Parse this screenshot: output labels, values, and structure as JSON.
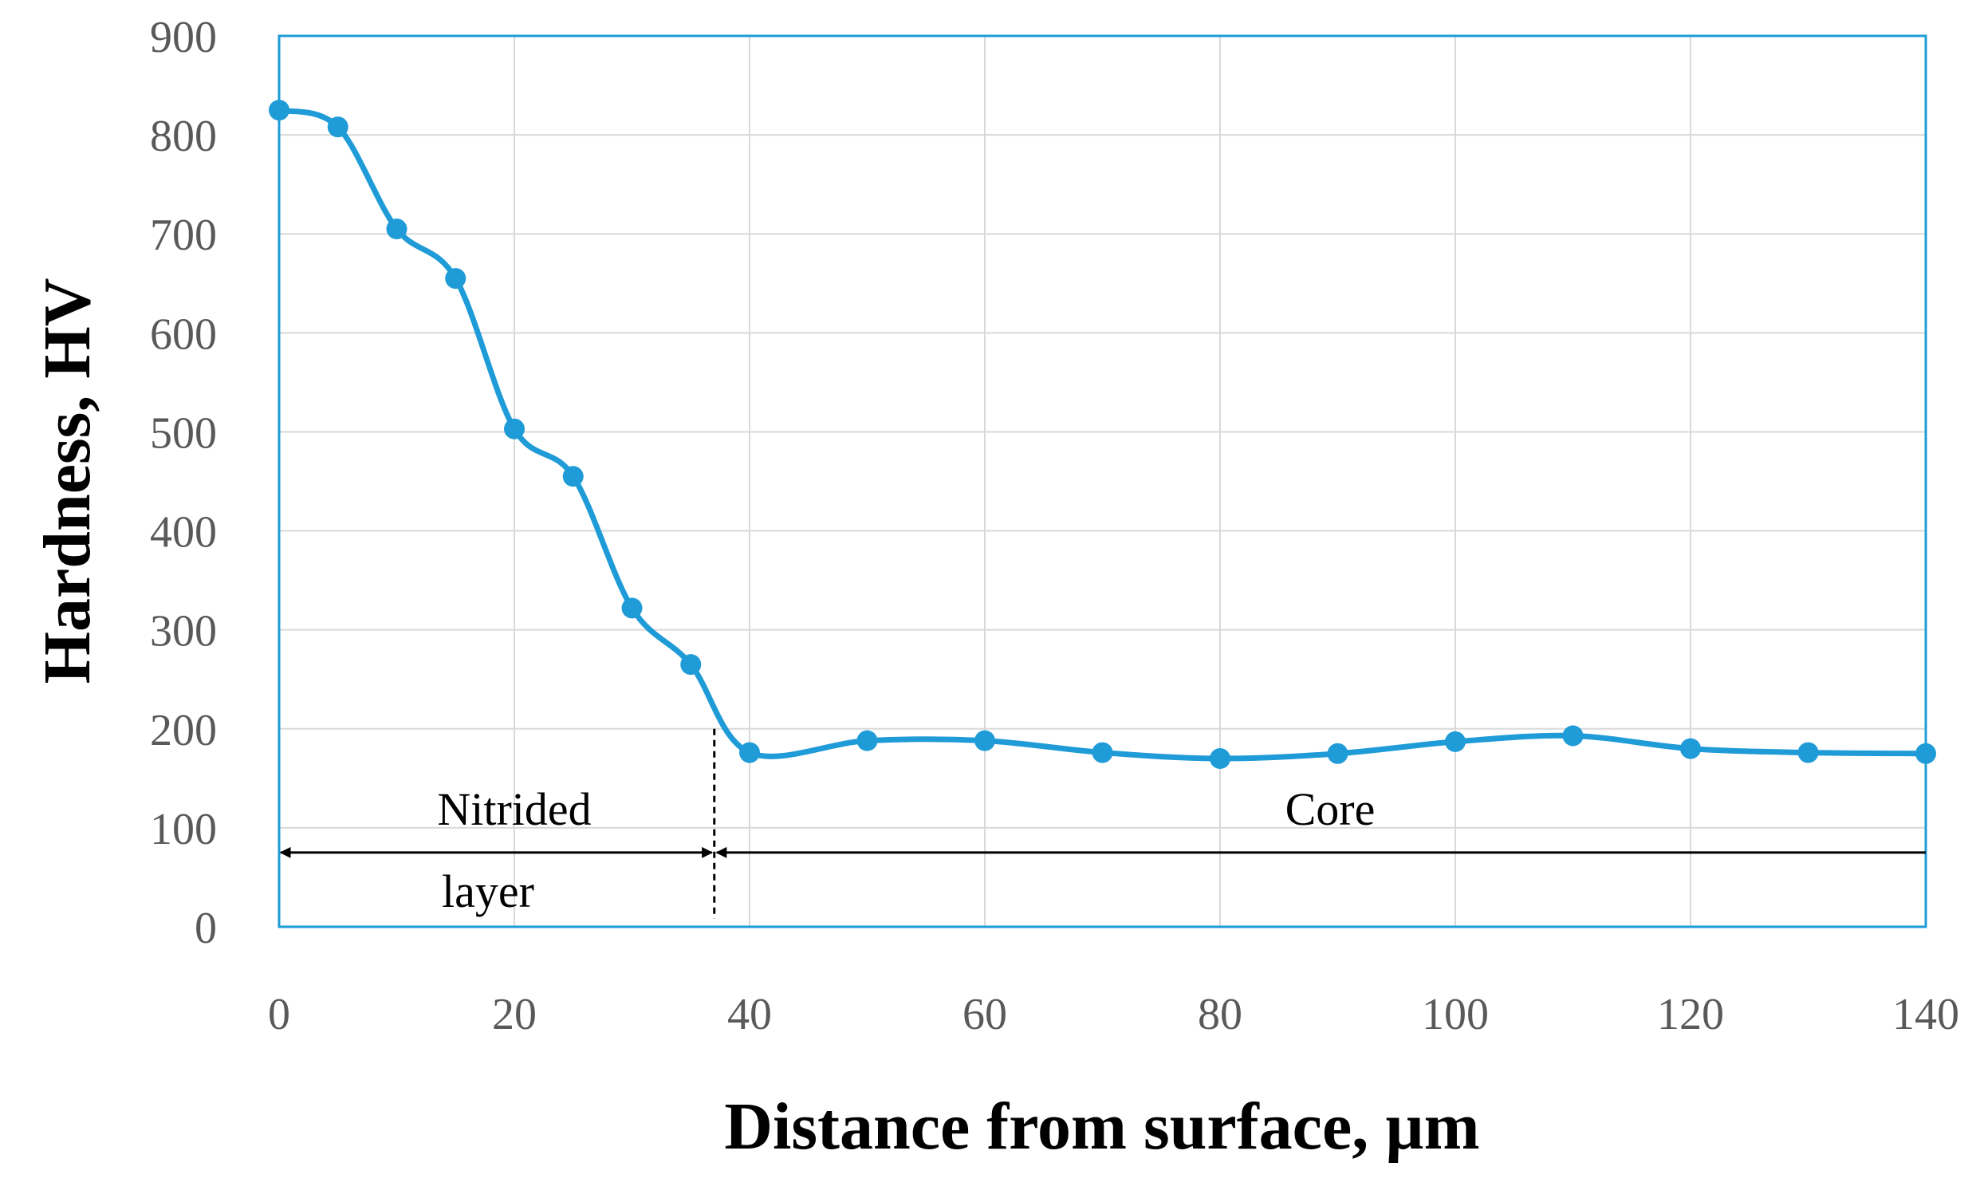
{
  "chart_data": {
    "type": "line",
    "title": "",
    "xlabel": "Distance from surface, µm",
    "ylabel": "Hardness, HV",
    "xlim": [
      0,
      140
    ],
    "ylim": [
      0,
      900
    ],
    "xticks": [
      0,
      20,
      40,
      60,
      80,
      100,
      120,
      140
    ],
    "yticks": [
      0,
      100,
      200,
      300,
      400,
      500,
      600,
      700,
      800,
      900
    ],
    "grid": true,
    "series": [
      {
        "name": "Hardness",
        "color": "#1f9bd7",
        "x": [
          0,
          5,
          10,
          15,
          20,
          25,
          30,
          35,
          40,
          50,
          60,
          70,
          80,
          90,
          100,
          110,
          120,
          130,
          140
        ],
        "y": [
          825,
          808,
          705,
          655,
          503,
          455,
          322,
          265,
          176,
          188,
          188,
          176,
          170,
          175,
          187,
          193,
          180,
          176,
          175
        ]
      }
    ],
    "annotations": {
      "nitrided_label_1": "Nitrided",
      "nitrided_label_2": "layer",
      "core_label": "Core",
      "boundary_x": 37,
      "arrow_y": 75
    }
  }
}
